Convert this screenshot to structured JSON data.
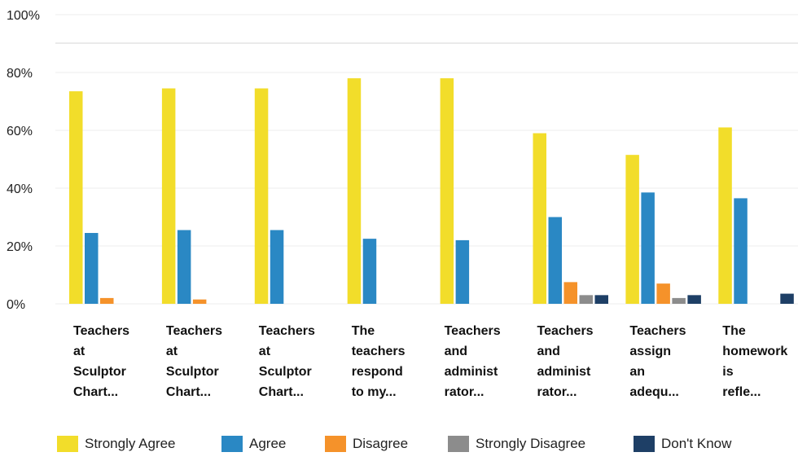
{
  "chart_data": {
    "type": "bar",
    "title": "",
    "xlabel": "",
    "ylabel": "",
    "ylim": [
      0,
      100
    ],
    "yticks": [
      "0%",
      "20%",
      "40%",
      "60%",
      "80%",
      "100%"
    ],
    "grid": true,
    "legend_position": "bottom",
    "categories": [
      "Teachers at Sculptor Chart...",
      "Teachers at Sculptor Chart...",
      "Teachers at Sculptor Chart...",
      "The teachers respond to my...",
      "Teachers and administ rator...",
      "Teachers and administ rator...",
      "Teachers assign an adequ...",
      "The homework is refle..."
    ],
    "category_lines": [
      [
        "Teachers",
        "at",
        "Sculptor",
        "Chart..."
      ],
      [
        "Teachers",
        "at",
        "Sculptor",
        "Chart..."
      ],
      [
        "Teachers",
        "at",
        "Sculptor",
        "Chart..."
      ],
      [
        "The",
        "teachers",
        "respond",
        "to my..."
      ],
      [
        "Teachers",
        "and",
        "administ",
        "rator..."
      ],
      [
        "Teachers",
        "and",
        "administ",
        "rator..."
      ],
      [
        "Teachers",
        "assign",
        "an",
        "adequ..."
      ],
      [
        "The",
        "homework",
        "is",
        "refle..."
      ]
    ],
    "series": [
      {
        "name": "Strongly Agree",
        "color": "#f2dd2a",
        "values": [
          73.5,
          74.5,
          74.5,
          78,
          78,
          59,
          51.5,
          61
        ]
      },
      {
        "name": "Agree",
        "color": "#2a88c4",
        "values": [
          24.5,
          25.5,
          25.5,
          22.5,
          22,
          30,
          38.5,
          36.5
        ]
      },
      {
        "name": "Disagree",
        "color": "#f5922a",
        "values": [
          2,
          1.5,
          0,
          0,
          0,
          7.5,
          7,
          0
        ]
      },
      {
        "name": "Strongly Disagree",
        "color": "#8c8c8c",
        "values": [
          0,
          0,
          0,
          0,
          0,
          3,
          2,
          0
        ]
      },
      {
        "name": "Don't Know",
        "color": "#1e3f66",
        "values": [
          0,
          0,
          0,
          0,
          0,
          3,
          3,
          3.5
        ]
      }
    ]
  }
}
